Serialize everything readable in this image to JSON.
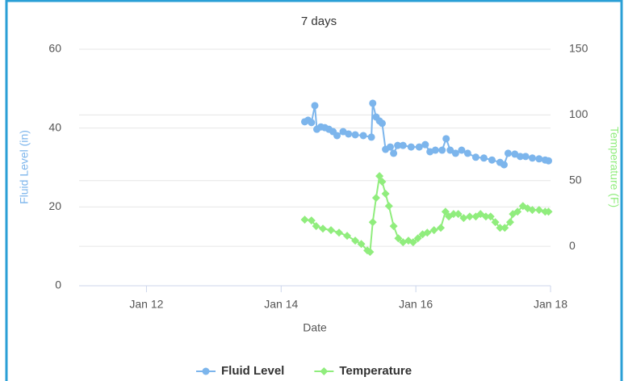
{
  "chart_data": {
    "type": "line",
    "title": "7 days",
    "xlabel": "Date",
    "ylabel": "Fluid Level (in)",
    "y2label": "Temperature (F)",
    "xlim": [
      11,
      18
    ],
    "xticks": [
      {
        "value": 12,
        "label": "Jan 12"
      },
      {
        "value": 14,
        "label": "Jan 14"
      },
      {
        "value": 16,
        "label": "Jan 16"
      },
      {
        "value": 18,
        "label": "Jan 18"
      }
    ],
    "ylim": [
      0,
      60
    ],
    "yticks": [
      0,
      20,
      40,
      60
    ],
    "y2lim": [
      -30,
      150
    ],
    "y2ticks": [
      0,
      50,
      100,
      150
    ],
    "grid": true,
    "legend": "bottom",
    "series": [
      {
        "name": "Fluid Level",
        "color": "#7cb5ec",
        "marker": "circle",
        "x": [
          14.35,
          14.4,
          14.45,
          14.5,
          14.53,
          14.59,
          14.65,
          14.71,
          14.77,
          14.83,
          14.92,
          15.0,
          15.1,
          15.22,
          15.34,
          15.36,
          15.41,
          15.46,
          15.5,
          15.55,
          15.62,
          15.67,
          15.73,
          15.81,
          15.93,
          16.05,
          16.14,
          16.21,
          16.29,
          16.39,
          16.45,
          16.51,
          16.59,
          16.68,
          16.77,
          16.89,
          17.01,
          17.13,
          17.25,
          17.31,
          17.37,
          17.47,
          17.55,
          17.63,
          17.73,
          17.83,
          17.92,
          17.97
        ],
        "values": [
          41.6,
          42.0,
          41.4,
          45.7,
          39.7,
          40.3,
          40.1,
          39.7,
          39.1,
          38.1,
          39.1,
          38.5,
          38.3,
          38.1,
          37.7,
          46.3,
          42.8,
          41.8,
          41.2,
          34.6,
          35.2,
          33.6,
          35.6,
          35.6,
          35.2,
          35.2,
          35.8,
          34.0,
          34.4,
          34.4,
          37.3,
          34.4,
          33.6,
          34.4,
          33.6,
          32.6,
          32.4,
          31.9,
          31.3,
          30.7,
          33.6,
          33.4,
          32.8,
          32.8,
          32.4,
          32.2,
          31.9,
          31.7
        ]
      },
      {
        "name": "Temperature",
        "color": "#90ed7d",
        "marker": "diamond",
        "axis": "y2",
        "x": [
          14.35,
          14.45,
          14.52,
          14.62,
          14.74,
          14.86,
          14.98,
          15.1,
          15.19,
          15.28,
          15.32,
          15.36,
          15.41,
          15.46,
          15.5,
          15.55,
          15.6,
          15.67,
          15.74,
          15.81,
          15.89,
          15.96,
          16.03,
          16.1,
          16.17,
          16.27,
          16.37,
          16.44,
          16.49,
          16.56,
          16.63,
          16.71,
          16.8,
          16.89,
          16.96,
          17.04,
          17.11,
          17.18,
          17.25,
          17.32,
          17.4,
          17.44,
          17.51,
          17.59,
          17.66,
          17.73,
          17.83,
          17.92,
          17.97
        ],
        "values": [
          20.3,
          19.7,
          15.4,
          13.5,
          12.3,
          10.4,
          8.0,
          4.3,
          1.8,
          -3.1,
          -4.3,
          18.4,
          36.9,
          53.5,
          49.2,
          40.0,
          30.7,
          15.4,
          6.1,
          3.1,
          4.3,
          3.1,
          6.1,
          9.2,
          10.4,
          12.3,
          14.1,
          26.4,
          22.7,
          24.6,
          24.6,
          21.5,
          22.7,
          22.7,
          24.6,
          22.7,
          22.7,
          18.4,
          14.1,
          14.1,
          18.4,
          24.6,
          26.4,
          30.7,
          28.9,
          27.7,
          27.7,
          26.4,
          26.4
        ]
      }
    ]
  }
}
